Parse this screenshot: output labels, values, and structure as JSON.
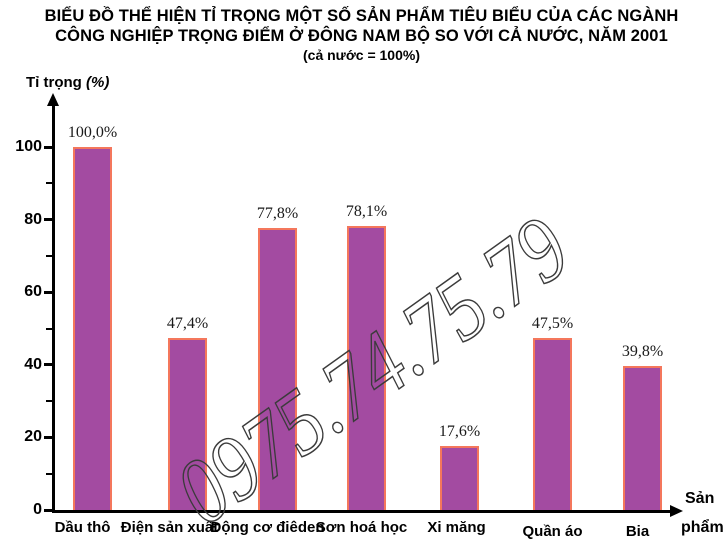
{
  "title": {
    "line1": "BIỂU ĐỒ THỂ HIỆN TỈ TRỌNG MỘT SỐ SẢN PHẨM TIÊU BIỂU CỦA CÁC NGÀNH",
    "line2": "CÔNG NGHIỆP TRỌNG ĐIỂM Ở ĐÔNG NAM BỘ SO VỚI CẢ NƯỚC, NĂM 2001",
    "subtitle": "(cả nước = 100%)"
  },
  "y_axis": {
    "label": "Tỉ trọng",
    "unit": "(%)"
  },
  "x_axis": {
    "label_line1": "Sản",
    "label_line2": "phẩm"
  },
  "watermark": {
    "text": "0975.74.75.79"
  },
  "colors": {
    "bar_fill": "#A34BA1",
    "bar_border": "#F4775C",
    "axis": "#000000",
    "watermark_stroke": "#3b3b3b"
  },
  "chart_data": {
    "type": "bar",
    "title": "BIỂU ĐỒ THỂ HIỆN TỈ TRỌNG MỘT SỐ SẢN PHẨM TIÊU BIỂU CỦA CÁC NGÀNH CÔNG NGHIỆP TRỌNG ĐIỂM Ở ĐÔNG NAM BỘ SO VỚI CẢ NƯỚC, NĂM 2001",
    "subtitle": "(cả nước = 100%)",
    "categories": [
      "Dầu thô",
      "Điện sản xuất",
      "Động cơ điêden",
      "Sơn hoá học",
      "Xi măng",
      "Quần áo",
      "Bia"
    ],
    "values": [
      100.0,
      47.4,
      77.8,
      78.1,
      17.6,
      47.5,
      39.8
    ],
    "value_labels": [
      "100,0%",
      "47,4%",
      "77,8%",
      "78,1%",
      "17,6%",
      "47,5%",
      "39,8%"
    ],
    "xlabel": "Sản phẩm",
    "ylabel": "Tỉ trọng (%)",
    "ylim": [
      0,
      112
    ],
    "yticks_major": [
      0,
      20,
      40,
      60,
      80,
      100
    ],
    "yticks_minor": [
      10,
      30,
      50,
      70,
      90
    ],
    "grid": false,
    "legend": false
  }
}
